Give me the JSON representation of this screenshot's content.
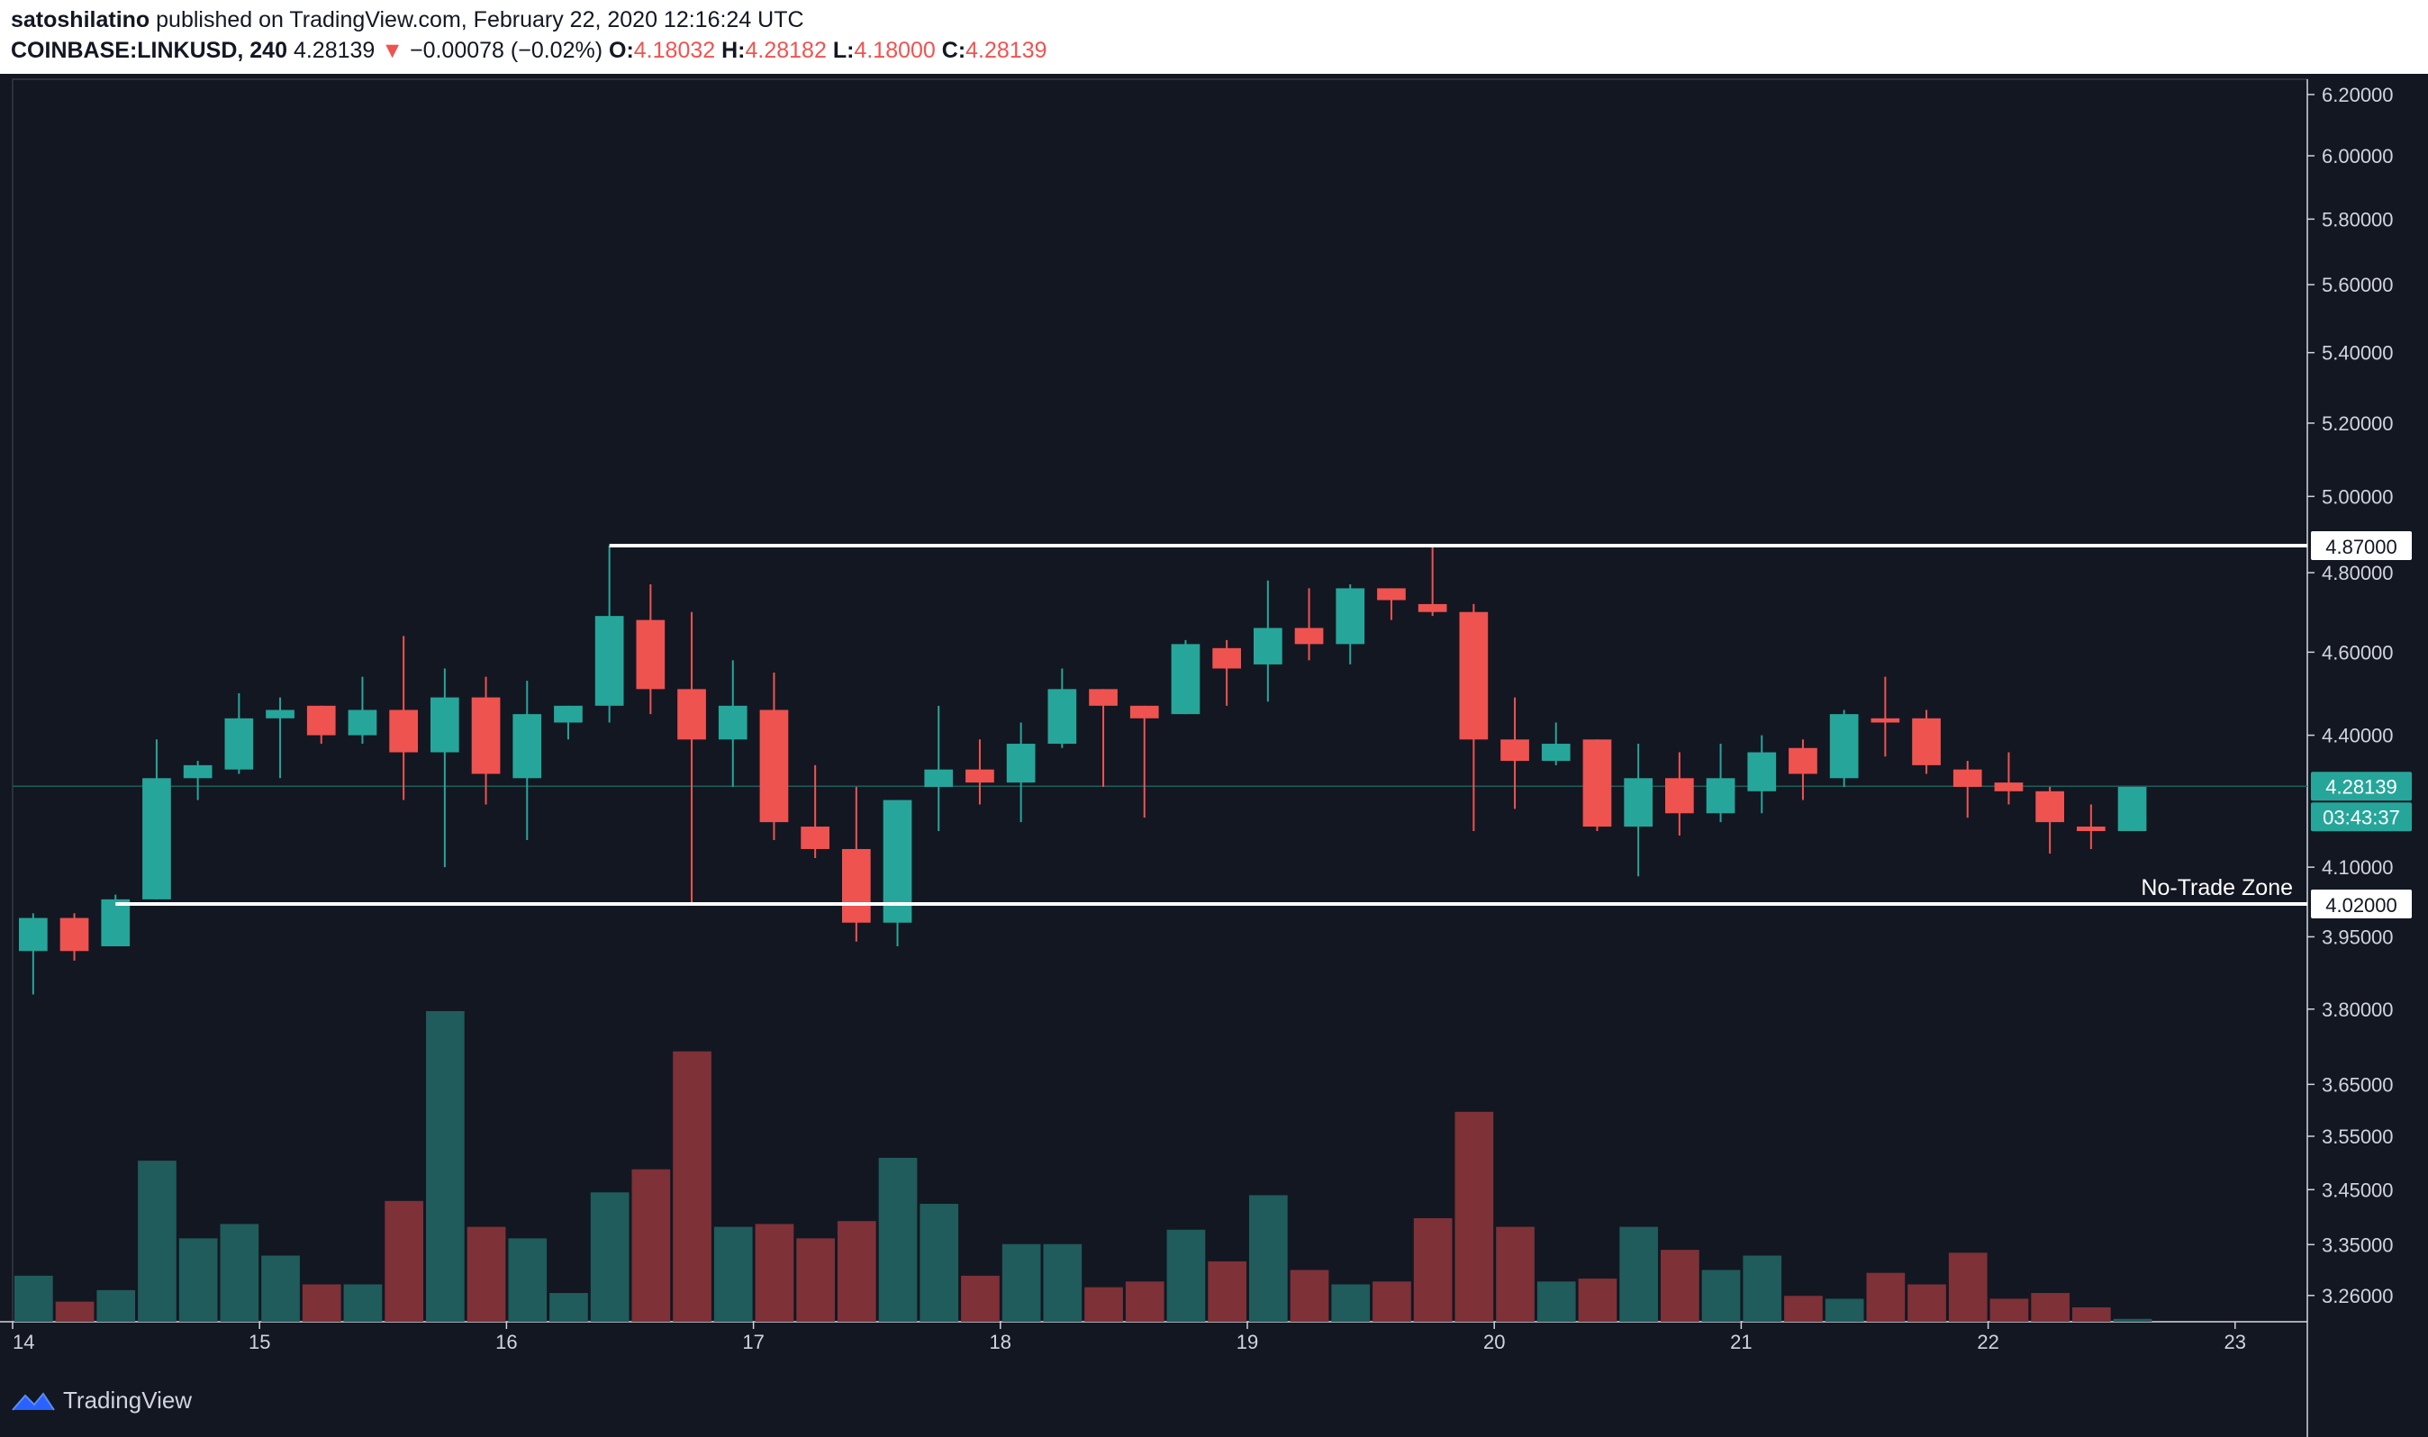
{
  "header": {
    "publisher": "satoshilatino",
    "published_text": "published on TradingView.com, February 22, 2020 12:16:24 UTC",
    "symbol": "COINBASE:LINKUSD, 240",
    "last": "4.28139",
    "change_arrow": "▼",
    "change": "−0.00078 (−0.02%)",
    "o_label": "O:",
    "o": "4.18032",
    "h_label": "H:",
    "h": "4.28182",
    "l_label": "L:",
    "l": "4.18000",
    "c_label": "C:",
    "c": "4.28139"
  },
  "brand": {
    "name": "TradingView"
  },
  "colors": {
    "background": "#131722",
    "up": "#26a69a",
    "down": "#ef5350",
    "vol_up": "#1f5c5b",
    "vol_down": "#7e3137",
    "axis_text": "#d1d4dc"
  },
  "chart_data": {
    "type": "candlestick",
    "symbol": "COINBASE:LINKUSD",
    "interval": "240",
    "x_tick_labels": [
      "14",
      "15",
      "16",
      "17",
      "18",
      "19",
      "20",
      "21",
      "22",
      "23"
    ],
    "y_tick_labels": [
      "6.20000",
      "6.00000",
      "5.80000",
      "5.60000",
      "5.40000",
      "5.20000",
      "5.00000",
      "4.80000",
      "4.60000",
      "4.40000",
      "4.10000",
      "3.95000",
      "3.80000",
      "3.65000",
      "3.55000",
      "3.45000",
      "3.35000",
      "3.26000"
    ],
    "y_ticks": [
      6.2,
      6.0,
      5.8,
      5.6,
      5.4,
      5.2,
      5.0,
      4.8,
      4.6,
      4.4,
      4.1,
      3.95,
      3.8,
      3.65,
      3.55,
      3.45,
      3.35,
      3.26
    ],
    "y_scale": "log",
    "ylim": [
      3.16,
      6.3
    ],
    "candles": [
      {
        "o": 3.92,
        "h": 4.0,
        "l": 3.83,
        "c": 3.99
      },
      {
        "o": 3.99,
        "h": 4.0,
        "l": 3.9,
        "c": 3.92
      },
      {
        "o": 3.93,
        "h": 4.04,
        "l": 3.93,
        "c": 4.03
      },
      {
        "o": 4.03,
        "h": 4.39,
        "l": 4.03,
        "c": 4.3
      },
      {
        "o": 4.3,
        "h": 4.34,
        "l": 4.25,
        "c": 4.33
      },
      {
        "o": 4.32,
        "h": 4.5,
        "l": 4.31,
        "c": 4.44
      },
      {
        "o": 4.44,
        "h": 4.49,
        "l": 4.3,
        "c": 4.46
      },
      {
        "o": 4.47,
        "h": 4.47,
        "l": 4.38,
        "c": 4.4
      },
      {
        "o": 4.4,
        "h": 4.54,
        "l": 4.38,
        "c": 4.46
      },
      {
        "o": 4.46,
        "h": 4.64,
        "l": 4.25,
        "c": 4.36
      },
      {
        "o": 4.36,
        "h": 4.56,
        "l": 4.1,
        "c": 4.49
      },
      {
        "o": 4.49,
        "h": 4.54,
        "l": 4.24,
        "c": 4.31
      },
      {
        "o": 4.3,
        "h": 4.53,
        "l": 4.16,
        "c": 4.45
      },
      {
        "o": 4.43,
        "h": 4.47,
        "l": 4.39,
        "c": 4.47
      },
      {
        "o": 4.47,
        "h": 4.87,
        "l": 4.43,
        "c": 4.69
      },
      {
        "o": 4.68,
        "h": 4.77,
        "l": 4.45,
        "c": 4.51
      },
      {
        "o": 4.51,
        "h": 4.7,
        "l": 4.02,
        "c": 4.39
      },
      {
        "o": 4.39,
        "h": 4.58,
        "l": 4.28,
        "c": 4.47
      },
      {
        "o": 4.46,
        "h": 4.55,
        "l": 4.16,
        "c": 4.2
      },
      {
        "o": 4.19,
        "h": 4.33,
        "l": 4.12,
        "c": 4.14
      },
      {
        "o": 4.14,
        "h": 4.28,
        "l": 3.94,
        "c": 3.98
      },
      {
        "o": 3.98,
        "h": 4.25,
        "l": 3.93,
        "c": 4.25
      },
      {
        "o": 4.28,
        "h": 4.47,
        "l": 4.18,
        "c": 4.32
      },
      {
        "o": 4.32,
        "h": 4.39,
        "l": 4.24,
        "c": 4.29
      },
      {
        "o": 4.29,
        "h": 4.43,
        "l": 4.2,
        "c": 4.38
      },
      {
        "o": 4.38,
        "h": 4.56,
        "l": 4.37,
        "c": 4.51
      },
      {
        "o": 4.51,
        "h": 4.51,
        "l": 4.28,
        "c": 4.47
      },
      {
        "o": 4.47,
        "h": 4.47,
        "l": 4.21,
        "c": 4.44
      },
      {
        "o": 4.45,
        "h": 4.63,
        "l": 4.45,
        "c": 4.62
      },
      {
        "o": 4.61,
        "h": 4.63,
        "l": 4.47,
        "c": 4.56
      },
      {
        "o": 4.57,
        "h": 4.78,
        "l": 4.48,
        "c": 4.66
      },
      {
        "o": 4.66,
        "h": 4.76,
        "l": 4.58,
        "c": 4.62
      },
      {
        "o": 4.62,
        "h": 4.77,
        "l": 4.57,
        "c": 4.76
      },
      {
        "o": 4.76,
        "h": 4.76,
        "l": 4.68,
        "c": 4.73
      },
      {
        "o": 4.72,
        "h": 4.87,
        "l": 4.69,
        "c": 4.7
      },
      {
        "o": 4.7,
        "h": 4.72,
        "l": 4.18,
        "c": 4.39
      },
      {
        "o": 4.39,
        "h": 4.49,
        "l": 4.23,
        "c": 4.34
      },
      {
        "o": 4.34,
        "h": 4.43,
        "l": 4.33,
        "c": 4.38
      },
      {
        "o": 4.39,
        "h": 4.39,
        "l": 4.18,
        "c": 4.19
      },
      {
        "o": 4.19,
        "h": 4.38,
        "l": 4.08,
        "c": 4.3
      },
      {
        "o": 4.3,
        "h": 4.36,
        "l": 4.17,
        "c": 4.22
      },
      {
        "o": 4.22,
        "h": 4.38,
        "l": 4.2,
        "c": 4.3
      },
      {
        "o": 4.27,
        "h": 4.4,
        "l": 4.22,
        "c": 4.36
      },
      {
        "o": 4.37,
        "h": 4.39,
        "l": 4.25,
        "c": 4.31
      },
      {
        "o": 4.3,
        "h": 4.46,
        "l": 4.28,
        "c": 4.45
      },
      {
        "o": 4.44,
        "h": 4.54,
        "l": 4.35,
        "c": 4.43
      },
      {
        "o": 4.44,
        "h": 4.46,
        "l": 4.31,
        "c": 4.33
      },
      {
        "o": 4.32,
        "h": 4.34,
        "l": 4.21,
        "c": 4.28
      },
      {
        "o": 4.29,
        "h": 4.36,
        "l": 4.24,
        "c": 4.27
      },
      {
        "o": 4.27,
        "h": 4.28,
        "l": 4.13,
        "c": 4.2
      },
      {
        "o": 4.19,
        "h": 4.24,
        "l": 4.14,
        "c": 4.18
      },
      {
        "o": 4.18,
        "h": 4.28,
        "l": 4.18,
        "c": 4.28
      }
    ],
    "volume": [
      16,
      7,
      11,
      56,
      29,
      34,
      23,
      13,
      13,
      42,
      108,
      33,
      29,
      10,
      45,
      53,
      94,
      33,
      34,
      29,
      35,
      57,
      41,
      16,
      27,
      27,
      12,
      14,
      32,
      21,
      44,
      18,
      13,
      14,
      36,
      73,
      33,
      14,
      15,
      33,
      25,
      18,
      23,
      9,
      8,
      17,
      13,
      24,
      8,
      10,
      5,
      1
    ],
    "horizontal_levels": [
      {
        "price": 4.87,
        "label": "4.87000",
        "from_bar": 14
      },
      {
        "price": 4.02,
        "label": "4.02000",
        "from_bar": 2
      }
    ],
    "annotations": [
      {
        "text": "No-Trade Zone",
        "price": 4.02
      }
    ],
    "last_price": {
      "value": 4.28139,
      "label": "4.28139",
      "countdown": "03:43:37"
    }
  }
}
